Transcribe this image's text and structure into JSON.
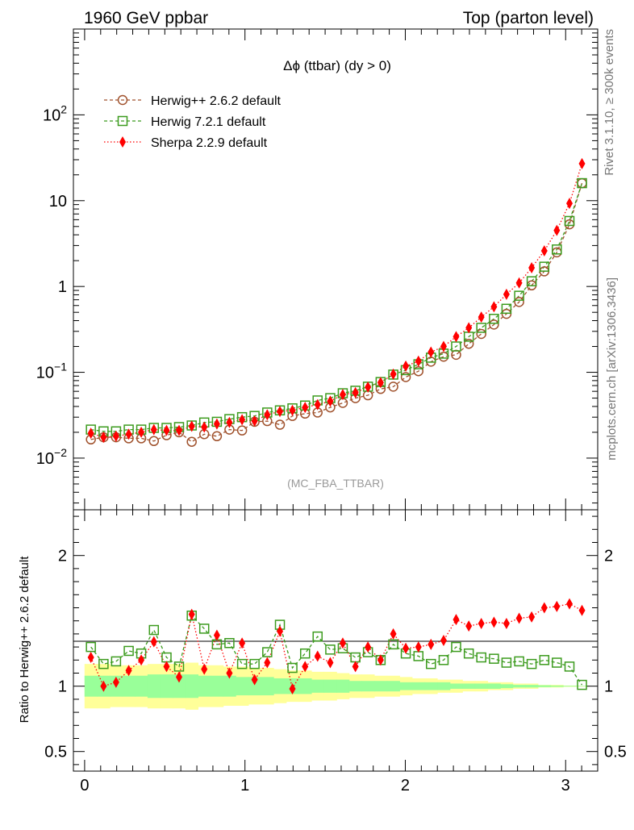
{
  "header": {
    "left": "1960 GeV ppbar",
    "right": "Top (parton level)"
  },
  "side_labels": {
    "rivet": "Rivet 3.1.10, ≥ 300k events",
    "mcplots": "mcplots.cern.ch [arXiv:1306.3436]"
  },
  "chart_data": {
    "type": "line",
    "title": "Δϕ (ttbar) (dy > 0)",
    "watermark": "(MC_FBA_TTBAR)",
    "legend_position": "top-left",
    "colors": {
      "herwigpp": "#a0522d",
      "herwig7": "#3c9b1e",
      "sherpa": "#ff0000",
      "band_outer": "#ffff99",
      "band_inner": "#99ff99"
    },
    "x": [
      0.039,
      0.118,
      0.196,
      0.275,
      0.353,
      0.432,
      0.511,
      0.589,
      0.668,
      0.746,
      0.825,
      0.903,
      0.982,
      1.06,
      1.139,
      1.218,
      1.296,
      1.375,
      1.453,
      1.532,
      1.61,
      1.689,
      1.767,
      1.846,
      1.925,
      2.003,
      2.082,
      2.16,
      2.239,
      2.317,
      2.396,
      2.474,
      2.553,
      2.631,
      2.71,
      2.788,
      2.867,
      2.945,
      3.024,
      3.102
    ],
    "xlim": [
      -0.07,
      3.2
    ],
    "upper": {
      "ylim": [
        0.0025,
        1000
      ],
      "log_scale": true,
      "tick_labels": [
        {
          "value": 0.01,
          "base": "10",
          "exp": "−2"
        },
        {
          "value": 0.1,
          "base": "10",
          "exp": "−1"
        },
        {
          "value": 1,
          "base": "1",
          "exp": ""
        },
        {
          "value": 10,
          "base": "10",
          "exp": ""
        },
        {
          "value": 100,
          "base": "10",
          "exp": "2"
        }
      ],
      "series": [
        {
          "name": "Herwig++ 2.6.2 default",
          "marker": "circle",
          "values": [
            0.0165,
            0.0175,
            0.0175,
            0.017,
            0.017,
            0.0158,
            0.0185,
            0.02,
            0.0155,
            0.019,
            0.018,
            0.0215,
            0.021,
            0.0265,
            0.027,
            0.0245,
            0.031,
            0.033,
            0.034,
            0.039,
            0.044,
            0.05,
            0.054,
            0.064,
            0.068,
            0.088,
            0.103,
            0.133,
            0.152,
            0.16,
            0.215,
            0.28,
            0.36,
            0.48,
            0.66,
            1.03,
            1.5,
            2.5,
            5.3,
            16.0
          ]
        },
        {
          "name": "Herwig 7.2.1 default",
          "marker": "square",
          "values": [
            0.0215,
            0.0205,
            0.0205,
            0.0215,
            0.0215,
            0.0225,
            0.0225,
            0.023,
            0.024,
            0.026,
            0.0265,
            0.0285,
            0.03,
            0.031,
            0.034,
            0.036,
            0.038,
            0.041,
            0.047,
            0.05,
            0.057,
            0.061,
            0.068,
            0.077,
            0.094,
            0.106,
            0.124,
            0.148,
            0.165,
            0.2,
            0.26,
            0.33,
            0.42,
            0.55,
            0.78,
            1.15,
            1.7,
            2.7,
            5.8,
            16.0
          ]
        },
        {
          "name": "Sherpa 2.2.9 default",
          "marker": "diamond",
          "values": [
            0.0195,
            0.0175,
            0.018,
            0.019,
            0.02,
            0.0215,
            0.021,
            0.021,
            0.0235,
            0.023,
            0.025,
            0.026,
            0.028,
            0.027,
            0.032,
            0.035,
            0.036,
            0.039,
            0.042,
            0.046,
            0.055,
            0.058,
            0.067,
            0.076,
            0.095,
            0.118,
            0.135,
            0.172,
            0.2,
            0.26,
            0.33,
            0.44,
            0.58,
            0.81,
            1.1,
            1.65,
            2.6,
            4.5,
            9.3,
            27.0
          ]
        }
      ]
    },
    "ratio": {
      "ylabel": "Ratio to Herwig++ 2.6.2 default",
      "ylim": [
        0.35,
        2.35
      ],
      "tick_labels": [
        {
          "value": 0.5,
          "label": "0.5"
        },
        {
          "value": 1,
          "label": "1"
        },
        {
          "value": 2,
          "label": "2"
        }
      ],
      "x_tick_labels": [
        {
          "value": 0,
          "label": "0"
        },
        {
          "value": 1,
          "label": "1"
        },
        {
          "value": 2,
          "label": "2"
        },
        {
          "value": 3,
          "label": "3"
        }
      ],
      "band_outer": [
        [
          0.83,
          1.17
        ],
        [
          0.83,
          1.17
        ],
        [
          0.84,
          1.16
        ],
        [
          0.84,
          1.16
        ],
        [
          0.84,
          1.16
        ],
        [
          0.83,
          1.17
        ],
        [
          0.83,
          1.17
        ],
        [
          0.83,
          1.17
        ],
        [
          0.82,
          1.18
        ],
        [
          0.84,
          1.16
        ],
        [
          0.84,
          1.16
        ],
        [
          0.85,
          1.15
        ],
        [
          0.85,
          1.15
        ],
        [
          0.86,
          1.14
        ],
        [
          0.86,
          1.14
        ],
        [
          0.87,
          1.13
        ],
        [
          0.88,
          1.12
        ],
        [
          0.88,
          1.12
        ],
        [
          0.89,
          1.11
        ],
        [
          0.89,
          1.11
        ],
        [
          0.9,
          1.1
        ],
        [
          0.91,
          1.09
        ],
        [
          0.91,
          1.09
        ],
        [
          0.92,
          1.08
        ],
        [
          0.92,
          1.08
        ],
        [
          0.93,
          1.07
        ],
        [
          0.94,
          1.06
        ],
        [
          0.94,
          1.06
        ],
        [
          0.95,
          1.05
        ],
        [
          0.95,
          1.05
        ],
        [
          0.96,
          1.04
        ],
        [
          0.96,
          1.04
        ],
        [
          0.97,
          1.03
        ],
        [
          0.97,
          1.03
        ],
        [
          0.98,
          1.02
        ],
        [
          0.98,
          1.02
        ],
        [
          0.99,
          1.01
        ],
        [
          0.99,
          1.01
        ],
        [
          0.995,
          1.005
        ],
        [
          0.997,
          1.003
        ]
      ],
      "band_inner": [
        [
          0.92,
          1.08
        ],
        [
          0.92,
          1.08
        ],
        [
          0.92,
          1.08
        ],
        [
          0.92,
          1.08
        ],
        [
          0.92,
          1.08
        ],
        [
          0.91,
          1.09
        ],
        [
          0.91,
          1.09
        ],
        [
          0.91,
          1.09
        ],
        [
          0.91,
          1.09
        ],
        [
          0.92,
          1.08
        ],
        [
          0.92,
          1.08
        ],
        [
          0.92,
          1.08
        ],
        [
          0.93,
          1.07
        ],
        [
          0.93,
          1.07
        ],
        [
          0.93,
          1.07
        ],
        [
          0.94,
          1.06
        ],
        [
          0.94,
          1.06
        ],
        [
          0.94,
          1.06
        ],
        [
          0.95,
          1.05
        ],
        [
          0.95,
          1.05
        ],
        [
          0.95,
          1.05
        ],
        [
          0.96,
          1.04
        ],
        [
          0.96,
          1.04
        ],
        [
          0.96,
          1.04
        ],
        [
          0.96,
          1.04
        ],
        [
          0.97,
          1.03
        ],
        [
          0.97,
          1.03
        ],
        [
          0.97,
          1.03
        ],
        [
          0.97,
          1.03
        ],
        [
          0.98,
          1.02
        ],
        [
          0.98,
          1.02
        ],
        [
          0.98,
          1.02
        ],
        [
          0.98,
          1.02
        ],
        [
          0.985,
          1.015
        ],
        [
          0.99,
          1.01
        ],
        [
          0.99,
          1.01
        ],
        [
          0.993,
          1.007
        ],
        [
          0.995,
          1.005
        ],
        [
          0.997,
          1.003
        ],
        [
          0.998,
          1.002
        ]
      ],
      "series": [
        {
          "name": "Herwig 7.2.1 default",
          "marker": "square",
          "values": [
            1.3,
            1.17,
            1.19,
            1.27,
            1.25,
            1.43,
            1.22,
            1.15,
            1.54,
            1.44,
            1.32,
            1.33,
            1.17,
            1.17,
            1.26,
            1.47,
            1.14,
            1.25,
            1.38,
            1.28,
            1.29,
            1.22,
            1.26,
            1.2,
            1.32,
            1.25,
            1.23,
            1.17,
            1.2,
            1.3,
            1.25,
            1.22,
            1.21,
            1.18,
            1.19,
            1.17,
            1.2,
            1.18,
            1.15,
            1.01
          ]
        },
        {
          "name": "Sherpa 2.2.9 default",
          "marker": "diamond",
          "values": [
            1.22,
            1.0,
            1.03,
            1.12,
            1.2,
            1.34,
            1.15,
            1.07,
            1.55,
            1.13,
            1.39,
            1.1,
            1.33,
            1.05,
            1.18,
            1.42,
            0.98,
            1.15,
            1.23,
            1.18,
            1.33,
            1.15,
            1.3,
            1.2,
            1.4,
            1.29,
            1.3,
            1.32,
            1.35,
            1.51,
            1.46,
            1.48,
            1.49,
            1.48,
            1.52,
            1.53,
            1.6,
            1.61,
            1.63,
            1.58
          ]
        }
      ]
    }
  }
}
